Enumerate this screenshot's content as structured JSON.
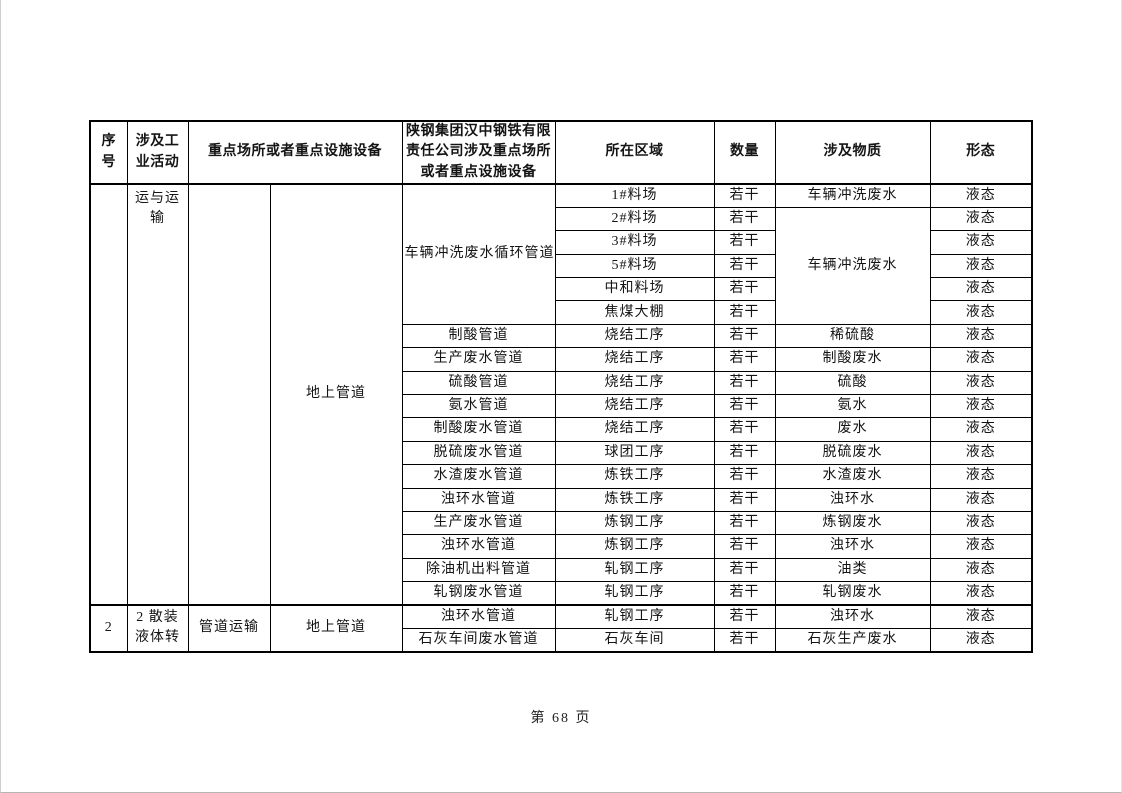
{
  "document": {
    "footer": {
      "page_label": "第 68 页"
    }
  },
  "table": {
    "header_cells": [
      {
        "t": "序\n号",
        "cls": "wrap",
        "name": "col-header-seq"
      },
      {
        "t": "涉及工\n业活动",
        "cls": "wrap",
        "name": "col-header-activity"
      },
      {
        "t": "重点场所或者重点设施设备",
        "cs": 2,
        "name": "col-header-key-places"
      },
      {
        "t": "陕钢集团汉中钢铁有限\n责任公司涉及重点场所\n或者重点设施设备",
        "cls": "wrap",
        "name": "col-header-company-places"
      },
      {
        "t": "所在区域",
        "name": "col-header-region"
      },
      {
        "t": "数量",
        "name": "col-header-quantity"
      },
      {
        "t": "涉及物质",
        "name": "col-header-substance"
      },
      {
        "t": "形态",
        "name": "col-header-state"
      }
    ],
    "body_rows": [
      {
        "cells": [
          {
            "t": "",
            "rs": 18,
            "name": "cell-seq"
          },
          {
            "t": "运与运\n输",
            "rs": 18,
            "cls": "wrap vtop",
            "name": "cell-activity"
          },
          {
            "t": "",
            "rs": 18,
            "name": "cell-place-category"
          },
          {
            "t": "地上管道",
            "rs": 18,
            "name": "cell-facility-category"
          },
          {
            "t": "车辆冲洗废水循环管道",
            "rs": 6,
            "name": "cell-facility"
          },
          {
            "t": "1#料场",
            "name": "cell-region"
          },
          {
            "t": "若干",
            "name": "cell-quantity"
          },
          {
            "t": "车辆冲洗废水",
            "name": "cell-substance"
          },
          {
            "t": "液态",
            "name": "cell-state"
          }
        ]
      },
      {
        "cells": [
          {
            "t": "2#料场",
            "name": "cell-region"
          },
          {
            "t": "若干",
            "name": "cell-quantity"
          },
          {
            "t": "车辆冲洗废水",
            "rs": 5,
            "name": "cell-substance"
          },
          {
            "t": "液态",
            "name": "cell-state"
          }
        ]
      },
      {
        "cells": [
          {
            "t": "3#料场",
            "name": "cell-region"
          },
          {
            "t": "若干",
            "name": "cell-quantity"
          },
          {
            "t": "液态",
            "name": "cell-state"
          }
        ]
      },
      {
        "cells": [
          {
            "t": "5#料场",
            "name": "cell-region"
          },
          {
            "t": "若干",
            "name": "cell-quantity"
          },
          {
            "t": "液态",
            "name": "cell-state"
          }
        ]
      },
      {
        "cells": [
          {
            "t": "中和料场",
            "name": "cell-region"
          },
          {
            "t": "若干",
            "name": "cell-quantity"
          },
          {
            "t": "液态",
            "name": "cell-state"
          }
        ]
      },
      {
        "cells": [
          {
            "t": "焦煤大棚",
            "name": "cell-region"
          },
          {
            "t": "若干",
            "name": "cell-quantity"
          },
          {
            "t": "液态",
            "name": "cell-state"
          }
        ]
      },
      {
        "cells": [
          {
            "t": "制酸管道",
            "name": "cell-facility"
          },
          {
            "t": "烧结工序",
            "name": "cell-region"
          },
          {
            "t": "若干",
            "name": "cell-quantity"
          },
          {
            "t": "稀硫酸",
            "name": "cell-substance"
          },
          {
            "t": "液态",
            "name": "cell-state"
          }
        ]
      },
      {
        "cells": [
          {
            "t": "生产废水管道",
            "name": "cell-facility"
          },
          {
            "t": "烧结工序",
            "name": "cell-region"
          },
          {
            "t": "若干",
            "name": "cell-quantity"
          },
          {
            "t": "制酸废水",
            "name": "cell-substance"
          },
          {
            "t": "液态",
            "name": "cell-state"
          }
        ]
      },
      {
        "cells": [
          {
            "t": "硫酸管道",
            "name": "cell-facility"
          },
          {
            "t": "烧结工序",
            "name": "cell-region"
          },
          {
            "t": "若干",
            "name": "cell-quantity"
          },
          {
            "t": "硫酸",
            "name": "cell-substance"
          },
          {
            "t": "液态",
            "name": "cell-state"
          }
        ]
      },
      {
        "cells": [
          {
            "t": "氨水管道",
            "name": "cell-facility"
          },
          {
            "t": "烧结工序",
            "name": "cell-region"
          },
          {
            "t": "若干",
            "name": "cell-quantity"
          },
          {
            "t": "氨水",
            "name": "cell-substance"
          },
          {
            "t": "液态",
            "name": "cell-state"
          }
        ]
      },
      {
        "cells": [
          {
            "t": "制酸废水管道",
            "name": "cell-facility"
          },
          {
            "t": "烧结工序",
            "name": "cell-region"
          },
          {
            "t": "若干",
            "name": "cell-quantity"
          },
          {
            "t": "废水",
            "name": "cell-substance"
          },
          {
            "t": "液态",
            "name": "cell-state"
          }
        ]
      },
      {
        "cells": [
          {
            "t": "脱硫废水管道",
            "name": "cell-facility"
          },
          {
            "t": "球团工序",
            "name": "cell-region"
          },
          {
            "t": "若干",
            "name": "cell-quantity"
          },
          {
            "t": "脱硫废水",
            "name": "cell-substance"
          },
          {
            "t": "液态",
            "name": "cell-state"
          }
        ]
      },
      {
        "cells": [
          {
            "t": "水渣废水管道",
            "name": "cell-facility"
          },
          {
            "t": "炼铁工序",
            "name": "cell-region"
          },
          {
            "t": "若干",
            "name": "cell-quantity"
          },
          {
            "t": "水渣废水",
            "name": "cell-substance"
          },
          {
            "t": "液态",
            "name": "cell-state"
          }
        ]
      },
      {
        "cells": [
          {
            "t": "浊环水管道",
            "name": "cell-facility"
          },
          {
            "t": "炼铁工序",
            "name": "cell-region"
          },
          {
            "t": "若干",
            "name": "cell-quantity"
          },
          {
            "t": "浊环水",
            "name": "cell-substance"
          },
          {
            "t": "液态",
            "name": "cell-state"
          }
        ]
      },
      {
        "cells": [
          {
            "t": "生产废水管道",
            "name": "cell-facility"
          },
          {
            "t": "炼钢工序",
            "name": "cell-region"
          },
          {
            "t": "若干",
            "name": "cell-quantity"
          },
          {
            "t": "炼钢废水",
            "name": "cell-substance"
          },
          {
            "t": "液态",
            "name": "cell-state"
          }
        ]
      },
      {
        "cells": [
          {
            "t": "浊环水管道",
            "name": "cell-facility"
          },
          {
            "t": "炼钢工序",
            "name": "cell-region"
          },
          {
            "t": "若干",
            "name": "cell-quantity"
          },
          {
            "t": "浊环水",
            "name": "cell-substance"
          },
          {
            "t": "液态",
            "name": "cell-state"
          }
        ]
      },
      {
        "cells": [
          {
            "t": "除油机出料管道",
            "name": "cell-facility"
          },
          {
            "t": "轧钢工序",
            "name": "cell-region"
          },
          {
            "t": "若干",
            "name": "cell-quantity"
          },
          {
            "t": "油类",
            "name": "cell-substance"
          },
          {
            "t": "液态",
            "name": "cell-state"
          }
        ]
      },
      {
        "cells": [
          {
            "t": "轧钢废水管道",
            "name": "cell-facility"
          },
          {
            "t": "轧钢工序",
            "name": "cell-region"
          },
          {
            "t": "若干",
            "name": "cell-quantity"
          },
          {
            "t": "轧钢废水",
            "name": "cell-substance"
          },
          {
            "t": "液态",
            "name": "cell-state"
          }
        ]
      },
      {
        "cls": "sec-start",
        "cells": [
          {
            "t": "2",
            "rs": 2,
            "name": "cell-seq"
          },
          {
            "t": "2 散装\n液体转",
            "rs": 2,
            "cls": "wrap",
            "name": "cell-activity"
          },
          {
            "t": "管道运输",
            "rs": 2,
            "name": "cell-place-category"
          },
          {
            "t": "地上管道",
            "rs": 2,
            "name": "cell-facility-category"
          },
          {
            "t": "浊环水管道",
            "name": "cell-facility"
          },
          {
            "t": "轧钢工序",
            "name": "cell-region"
          },
          {
            "t": "若干",
            "name": "cell-quantity"
          },
          {
            "t": "浊环水",
            "name": "cell-substance"
          },
          {
            "t": "液态",
            "name": "cell-state"
          }
        ]
      },
      {
        "cells": [
          {
            "t": "石灰车间废水管道",
            "name": "cell-facility"
          },
          {
            "t": "石灰车间",
            "name": "cell-region"
          },
          {
            "t": "若干",
            "name": "cell-quantity"
          },
          {
            "t": "石灰生产废水",
            "name": "cell-substance"
          },
          {
            "t": "液态",
            "name": "cell-state"
          }
        ]
      }
    ]
  }
}
